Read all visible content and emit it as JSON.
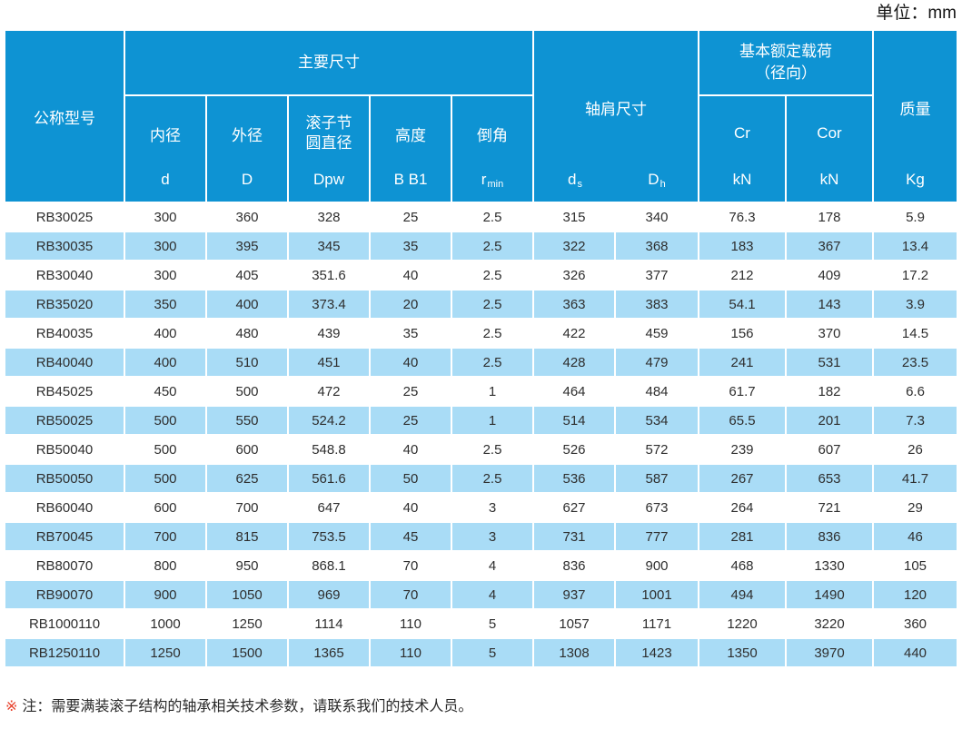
{
  "unit_label": "单位：mm",
  "table": {
    "header": {
      "model": "公称型号",
      "main_dims_group": "主要尺寸",
      "shoulder_group": "轴肩尺寸",
      "load_group_line1": "基本额定载荷",
      "load_group_line2": "（径向）",
      "mass_label": "质量",
      "mass_unit": "Kg",
      "bore_label": "内径",
      "bore_symbol": "d",
      "outer_label": "外径",
      "outer_symbol": "D",
      "pitch_label": "滚子节\n圆直径",
      "pitch_symbol": "Dpw",
      "height_label": "高度",
      "height_symbol": "B B1",
      "chamfer_label": "倒角",
      "chamfer_symbol_main": "r",
      "chamfer_symbol_sub": "min",
      "ds_main": "d",
      "ds_sub": "s",
      "dh_main": "D",
      "dh_sub": "h",
      "cr_label": "Cr",
      "cr_unit": "kN",
      "cor_label": "Cor",
      "cor_unit": "kN"
    },
    "rows": [
      [
        "RB30025",
        "300",
        "360",
        "328",
        "25",
        "2.5",
        "315",
        "340",
        "76.3",
        "178",
        "5.9"
      ],
      [
        "RB30035",
        "300",
        "395",
        "345",
        "35",
        "2.5",
        "322",
        "368",
        "183",
        "367",
        "13.4"
      ],
      [
        "RB30040",
        "300",
        "405",
        "351.6",
        "40",
        "2.5",
        "326",
        "377",
        "212",
        "409",
        "17.2"
      ],
      [
        "RB35020",
        "350",
        "400",
        "373.4",
        "20",
        "2.5",
        "363",
        "383",
        "54.1",
        "143",
        "3.9"
      ],
      [
        "RB40035",
        "400",
        "480",
        "439",
        "35",
        "2.5",
        "422",
        "459",
        "156",
        "370",
        "14.5"
      ],
      [
        "RB40040",
        "400",
        "510",
        "451",
        "40",
        "2.5",
        "428",
        "479",
        "241",
        "531",
        "23.5"
      ],
      [
        "RB45025",
        "450",
        "500",
        "472",
        "25",
        "1",
        "464",
        "484",
        "61.7",
        "182",
        "6.6"
      ],
      [
        "RB50025",
        "500",
        "550",
        "524.2",
        "25",
        "1",
        "514",
        "534",
        "65.5",
        "201",
        "7.3"
      ],
      [
        "RB50040",
        "500",
        "600",
        "548.8",
        "40",
        "2.5",
        "526",
        "572",
        "239",
        "607",
        "26"
      ],
      [
        "RB50050",
        "500",
        "625",
        "561.6",
        "50",
        "2.5",
        "536",
        "587",
        "267",
        "653",
        "41.7"
      ],
      [
        "RB60040",
        "600",
        "700",
        "647",
        "40",
        "3",
        "627",
        "673",
        "264",
        "721",
        "29"
      ],
      [
        "RB70045",
        "700",
        "815",
        "753.5",
        "45",
        "3",
        "731",
        "777",
        "281",
        "836",
        "46"
      ],
      [
        "RB80070",
        "800",
        "950",
        "868.1",
        "70",
        "4",
        "836",
        "900",
        "468",
        "1330",
        "105"
      ],
      [
        "RB90070",
        "900",
        "1050",
        "969",
        "70",
        "4",
        "937",
        "1001",
        "494",
        "1490",
        "120"
      ],
      [
        "RB1000110",
        "1000",
        "1250",
        "1114",
        "110",
        "5",
        "1057",
        "1171",
        "1220",
        "3220",
        "360"
      ],
      [
        "RB1250110",
        "1250",
        "1500",
        "1365",
        "110",
        "5",
        "1308",
        "1423",
        "1350",
        "3970",
        "440"
      ]
    ]
  },
  "note": {
    "marker": "※",
    "text": "注：需要满装滚子结构的轴承相关技术参数，请联系我们的技术人员。"
  },
  "colors": {
    "header_blue": "#0E93D3",
    "row_alt_blue": "#A9DCF6",
    "note_marker_red": "#E8402A",
    "body_text": "#2E2E2E"
  }
}
